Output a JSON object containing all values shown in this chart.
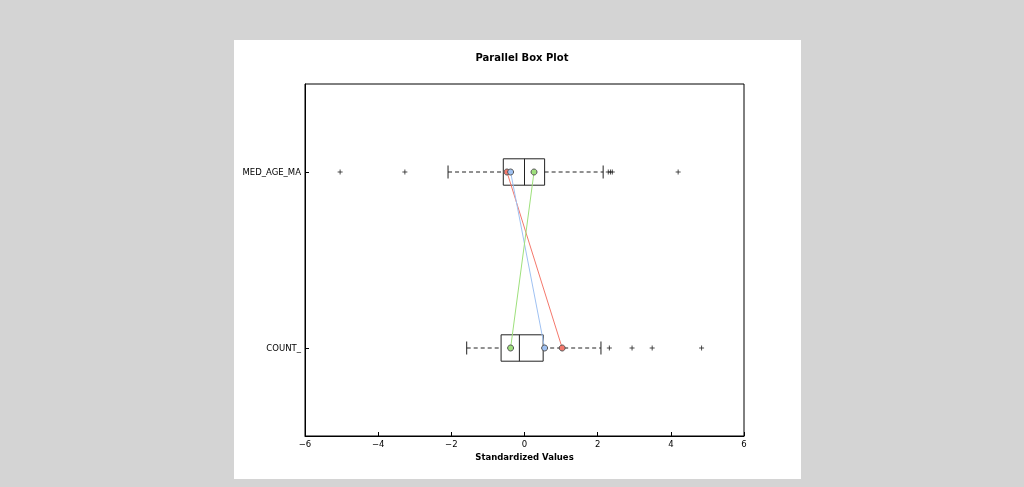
{
  "chart_data": {
    "type": "box",
    "title": "Parallel Box Plot",
    "xlabel": "Standardized Values",
    "orientation": "horizontal",
    "categories": [
      "MED_AGE_MA",
      "COUNT_"
    ],
    "boxes": [
      {
        "low": -2.09,
        "q1": -0.58,
        "median": 0.0,
        "q3": 0.55,
        "high": 2.15,
        "outliers": [
          -5.04,
          -3.27,
          2.29,
          2.35,
          2.4,
          4.2
        ]
      },
      {
        "low": -1.58,
        "q1": -0.64,
        "median": -0.14,
        "q3": 0.51,
        "high": 2.09,
        "outliers": [
          2.32,
          2.94,
          3.49,
          4.84
        ]
      }
    ],
    "series": [
      {
        "type": "line",
        "color": "#f4786c",
        "values": [
          -0.48,
          1.03
        ]
      },
      {
        "type": "line",
        "color": "#9fc1f2",
        "values": [
          -0.38,
          0.55
        ]
      },
      {
        "type": "line",
        "color": "#9ee07c",
        "values": [
          0.26,
          -0.38
        ]
      }
    ],
    "xlim": [
      -6,
      6
    ],
    "xticks": [
      {
        "value": -6,
        "label": "−6"
      },
      {
        "value": -4,
        "label": "−4"
      },
      {
        "value": -2,
        "label": "−2"
      },
      0,
      2,
      4,
      6
    ],
    "marker": "circle",
    "line_style": "solid"
  }
}
